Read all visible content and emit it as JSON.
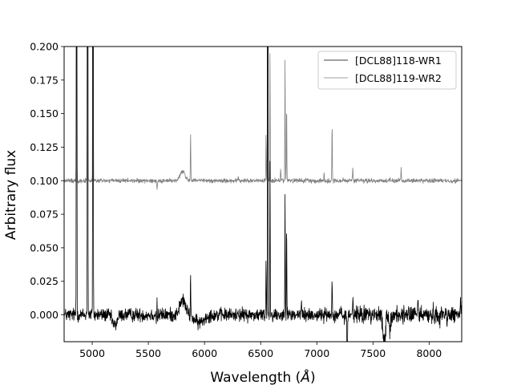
{
  "chart_data": {
    "type": "line",
    "title": "",
    "xlabel": "Wavelength ($\\AA$)",
    "xlabel_main": "Wavelength (",
    "xlabel_symbol": "Å",
    "xlabel_end": ")",
    "ylabel": "Arbitrary flux",
    "xlim": [
      4750,
      8290
    ],
    "ylim": [
      -0.02,
      0.2
    ],
    "x_ticks": [
      5000,
      5500,
      6000,
      6500,
      7000,
      7500,
      8000
    ],
    "x_tick_labels": [
      "5000",
      "5500",
      "6000",
      "6500",
      "7000",
      "7500",
      "8000"
    ],
    "y_ticks": [
      0.0,
      0.025,
      0.05,
      0.075,
      0.1,
      0.125,
      0.15,
      0.175,
      0.2
    ],
    "y_tick_labels": [
      "0.000",
      "0.025",
      "0.050",
      "0.075",
      "0.100",
      "0.125",
      "0.150",
      "0.175",
      "0.200"
    ],
    "grid": false,
    "legend_position": "top-right",
    "series": [
      {
        "name": "[DCL88]118-WR1",
        "color": "#000000",
        "baseline": 0.0,
        "noise": 0.0025,
        "features": [
          {
            "x": 4861,
            "height": 0.6,
            "width": 2
          },
          {
            "x": 4959,
            "height": 0.6,
            "width": 2
          },
          {
            "x": 5007,
            "height": 0.6,
            "width": 2
          },
          {
            "x": 5200,
            "height": -0.008,
            "width": 20
          },
          {
            "x": 5577,
            "height": 0.025,
            "width": 2
          },
          {
            "x": 5577,
            "height": -0.012,
            "width": 4
          },
          {
            "x": 5805,
            "height": 0.011,
            "width": 25
          },
          {
            "x": 5876,
            "height": 0.03,
            "width": 2
          },
          {
            "x": 5950,
            "height": -0.006,
            "width": 40
          },
          {
            "x": 6300,
            "height": 0.006,
            "width": 2
          },
          {
            "x": 6548,
            "height": 0.04,
            "width": 2
          },
          {
            "x": 6563,
            "height": 0.6,
            "width": 2
          },
          {
            "x": 6583,
            "height": 0.12,
            "width": 2
          },
          {
            "x": 6717,
            "height": 0.092,
            "width": 2
          },
          {
            "x": 6731,
            "height": 0.07,
            "width": 2
          },
          {
            "x": 6863,
            "height": 0.01,
            "width": 3
          },
          {
            "x": 7136,
            "height": 0.031,
            "width": 2
          },
          {
            "x": 7270,
            "height": -0.03,
            "width": 3
          },
          {
            "x": 7320,
            "height": 0.012,
            "width": 3
          },
          {
            "x": 7600,
            "height": -0.02,
            "width": 12
          },
          {
            "x": 7650,
            "height": -0.012,
            "width": 6
          },
          {
            "x": 7900,
            "height": 0.01,
            "width": 3
          },
          {
            "x": 8280,
            "height": 0.01,
            "width": 3
          }
        ]
      },
      {
        "name": "[DCL88]119-WR2",
        "color": "#808080",
        "baseline": 0.1,
        "noise": 0.0008,
        "features": [
          {
            "x": 4861,
            "height": 0.5,
            "width": 2
          },
          {
            "x": 4959,
            "height": 0.5,
            "width": 2
          },
          {
            "x": 5007,
            "height": 0.5,
            "width": 2
          },
          {
            "x": 5577,
            "height": -0.006,
            "width": 3
          },
          {
            "x": 5805,
            "height": 0.007,
            "width": 22
          },
          {
            "x": 5876,
            "height": 0.036,
            "width": 2
          },
          {
            "x": 6300,
            "height": 0.003,
            "width": 2
          },
          {
            "x": 6548,
            "height": 0.035,
            "width": 2
          },
          {
            "x": 6563,
            "height": 0.5,
            "width": 2
          },
          {
            "x": 6583,
            "height": 0.097,
            "width": 2
          },
          {
            "x": 6678,
            "height": 0.01,
            "width": 2
          },
          {
            "x": 6717,
            "height": 0.09,
            "width": 2
          },
          {
            "x": 6731,
            "height": 0.058,
            "width": 2
          },
          {
            "x": 7065,
            "height": 0.006,
            "width": 2
          },
          {
            "x": 7136,
            "height": 0.043,
            "width": 2
          },
          {
            "x": 7320,
            "height": 0.008,
            "width": 3
          },
          {
            "x": 7751,
            "height": 0.011,
            "width": 2
          }
        ]
      }
    ]
  }
}
